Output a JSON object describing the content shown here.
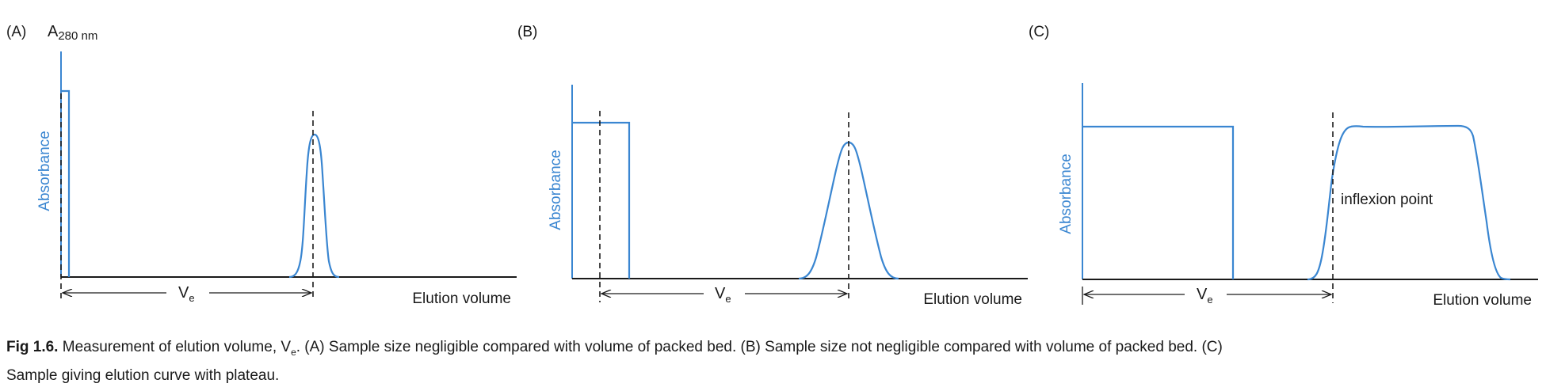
{
  "colors": {
    "curve": "#3a86d1",
    "axis": "#1a1a1a",
    "label_blue": "#3a86d1"
  },
  "panels": [
    {
      "id": "A",
      "label": "(A)",
      "y_label": "Absorbance",
      "x_label": "Elution volume",
      "ve_label": "V",
      "ve_sub": "e",
      "extra_label": "A",
      "extra_sub": "280 nm"
    },
    {
      "id": "B",
      "label": "(B)",
      "y_label": "Absorbance",
      "x_label": "Elution volume",
      "ve_label": "V",
      "ve_sub": "e"
    },
    {
      "id": "C",
      "label": "(C)",
      "y_label": "Absorbance",
      "x_label": "Elution volume",
      "ve_label": "V",
      "ve_sub": "e",
      "annotation": "inflexion point"
    }
  ],
  "caption": {
    "bold": "Fig 1.6.",
    "part1": " Measurement of elution volume, V",
    "sub": "e",
    "part2": ". (A) Sample size negligible compared with volume of packed bed. (B) Sample size not negligible compared with volume of packed bed. (C) Sample giving elution curve with plateau."
  }
}
